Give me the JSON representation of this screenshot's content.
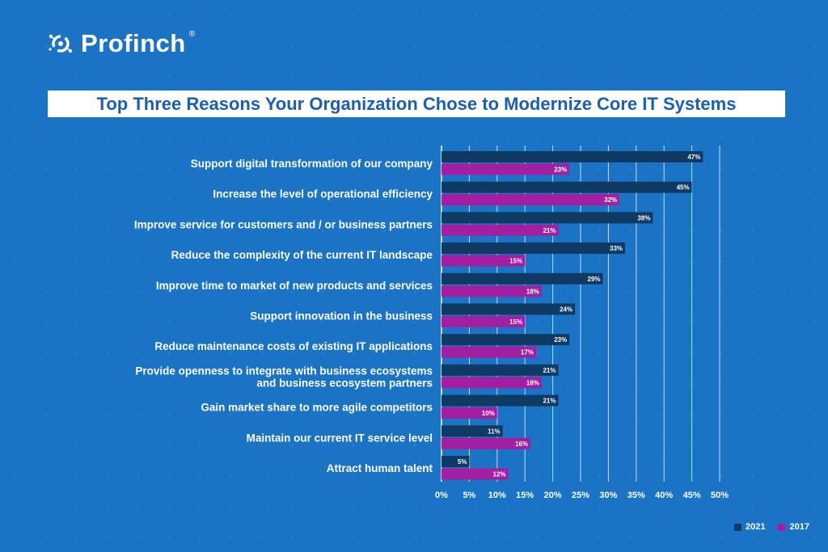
{
  "brand": {
    "name": "Profinch",
    "registered": "®"
  },
  "colors": {
    "background": "#1a73c4",
    "series_2021": "#0e3a64",
    "series_2017": "#a31ea0",
    "grid": "#ffffff"
  },
  "chart_data": {
    "type": "bar",
    "orientation": "horizontal",
    "title": "Top Three Reasons Your Organization Chose to Modernize Core IT Systems",
    "categories": [
      "Support digital transformation of our company",
      "Increase the level of operational efficiency",
      "Improve service for customers and / or business partners",
      "Reduce the complexity of the current IT landscape",
      "Improve time to market of new products and services",
      "Support innovation in the business",
      "Reduce maintenance costs of existing IT applications",
      "Provide openness to integrate with business ecosystems\nand business ecosystem partners",
      "Gain market share to more agile competitors",
      "Maintain our current IT service level",
      "Attract human talent"
    ],
    "series": [
      {
        "name": "2021",
        "values": [
          47,
          45,
          38,
          33,
          29,
          24,
          23,
          21,
          21,
          11,
          5
        ]
      },
      {
        "name": "2017",
        "values": [
          23,
          32,
          21,
          15,
          18,
          15,
          17,
          18,
          10,
          16,
          12
        ]
      }
    ],
    "xlim": [
      0,
      50
    ],
    "x_ticks": [
      "0%",
      "5%",
      "10%",
      "15%",
      "20%",
      "25%",
      "30%",
      "35%",
      "40%",
      "45%",
      "50%"
    ],
    "value_suffix": "%",
    "grid": true,
    "legend_position": "bottom-right"
  }
}
